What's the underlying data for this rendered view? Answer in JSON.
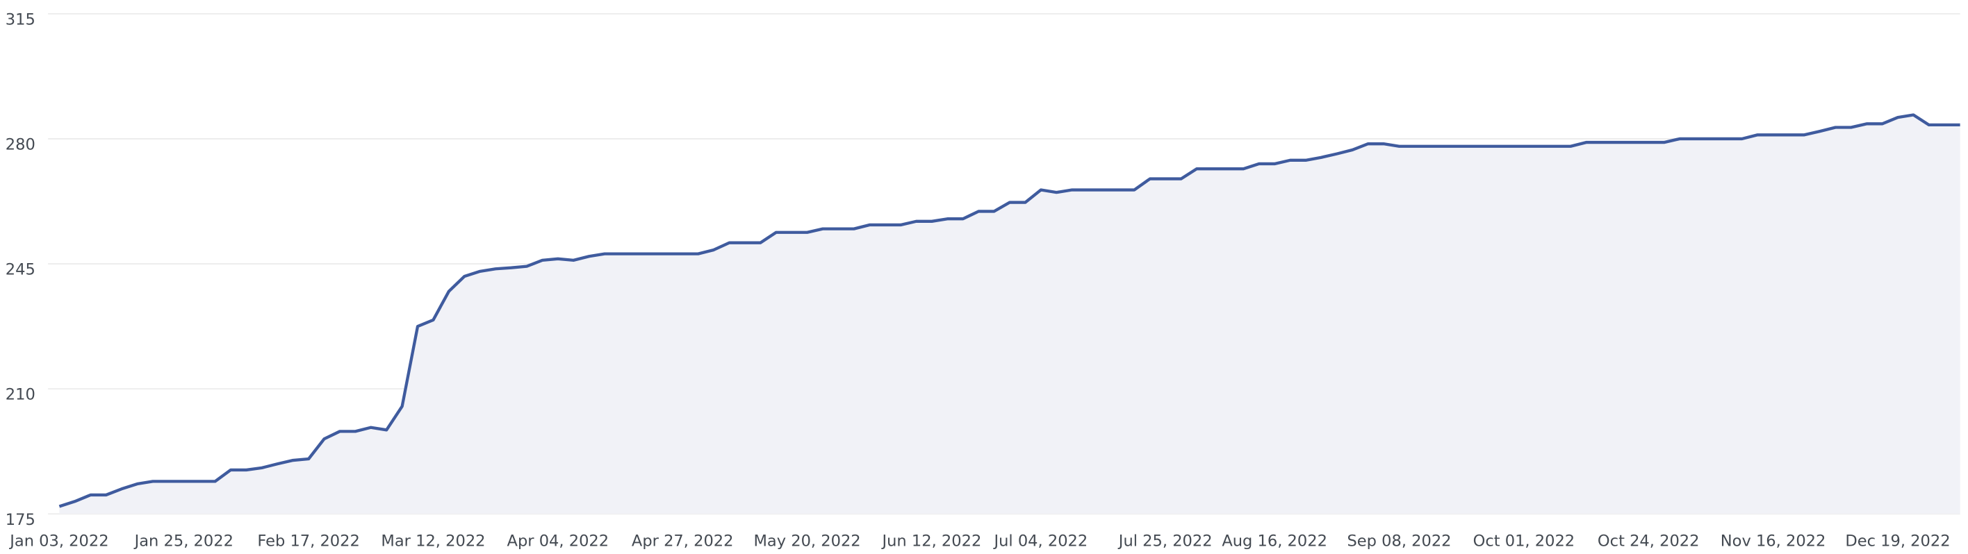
{
  "chart_data": {
    "type": "area",
    "color": "#3f5b9e",
    "fill": "#f1f2f7",
    "grid": true,
    "ylim": [
      175,
      315
    ],
    "yticks": [
      175,
      210,
      245,
      280,
      315
    ],
    "categories": [
      "Jan 03, 2022",
      null,
      null,
      null,
      null,
      null,
      null,
      null,
      "Jan 25, 2022",
      null,
      null,
      null,
      null,
      null,
      null,
      null,
      "Feb 17, 2022",
      null,
      null,
      null,
      null,
      null,
      null,
      null,
      "Mar 12, 2022",
      null,
      null,
      null,
      null,
      null,
      null,
      null,
      "Apr 04, 2022",
      null,
      null,
      null,
      null,
      null,
      null,
      null,
      "Apr 27, 2022",
      null,
      null,
      null,
      null,
      null,
      null,
      null,
      "May 20, 2022",
      null,
      null,
      null,
      null,
      null,
      null,
      null,
      "Jun 12, 2022",
      null,
      null,
      null,
      null,
      null,
      null,
      "Jul 04, 2022",
      null,
      null,
      null,
      null,
      null,
      null,
      null,
      "Jul 25, 2022",
      null,
      null,
      null,
      null,
      null,
      null,
      "Aug 16, 2022",
      null,
      null,
      null,
      null,
      null,
      null,
      null,
      "Sep 08, 2022",
      null,
      null,
      null,
      null,
      null,
      null,
      null,
      "Oct 01, 2022",
      null,
      null,
      null,
      null,
      null,
      null,
      null,
      "Oct 24, 2022",
      null,
      null,
      null,
      null,
      null,
      null,
      null,
      "Nov 16, 2022",
      null,
      null,
      null,
      null,
      null,
      null,
      null,
      "Dec 19, 2022",
      null,
      null,
      null,
      null
    ],
    "values": [
      177.1,
      178.5,
      180.3,
      180.3,
      182,
      183.4,
      184.1,
      184.1,
      184.1,
      184.1,
      184.1,
      187.3,
      187.3,
      187.9,
      189,
      190,
      190.4,
      196,
      198.1,
      198.1,
      199.2,
      198.5,
      205.1,
      227.5,
      229.3,
      237.3,
      241.5,
      242.9,
      243.6,
      243.9,
      244.3,
      246,
      246.4,
      246,
      247.1,
      247.8,
      247.8,
      247.8,
      247.8,
      247.8,
      247.8,
      247.8,
      248.9,
      250.9,
      250.9,
      250.9,
      253.8,
      253.8,
      253.8,
      254.8,
      254.8,
      254.8,
      255.9,
      255.9,
      255.9,
      256.9,
      256.9,
      257.6,
      257.6,
      259.7,
      259.7,
      262.2,
      262.2,
      265.7,
      265,
      265.7,
      265.7,
      265.7,
      265.7,
      265.7,
      268.8,
      268.8,
      268.8,
      271.6,
      271.6,
      271.6,
      271.6,
      273,
      273,
      274,
      274,
      274.8,
      275.8,
      276.9,
      278.6,
      278.6,
      277.9,
      277.9,
      277.9,
      277.9,
      277.9,
      277.9,
      277.9,
      277.9,
      277.9,
      277.9,
      277.9,
      277.9,
      279,
      279,
      279,
      279,
      279,
      279,
      280,
      280,
      280,
      280,
      280,
      281.1,
      281.1,
      281.1,
      281.1,
      282.1,
      283.2,
      283.2,
      284.2,
      284.2,
      286,
      286.7,
      283.9,
      283.9,
      283.9
    ]
  }
}
